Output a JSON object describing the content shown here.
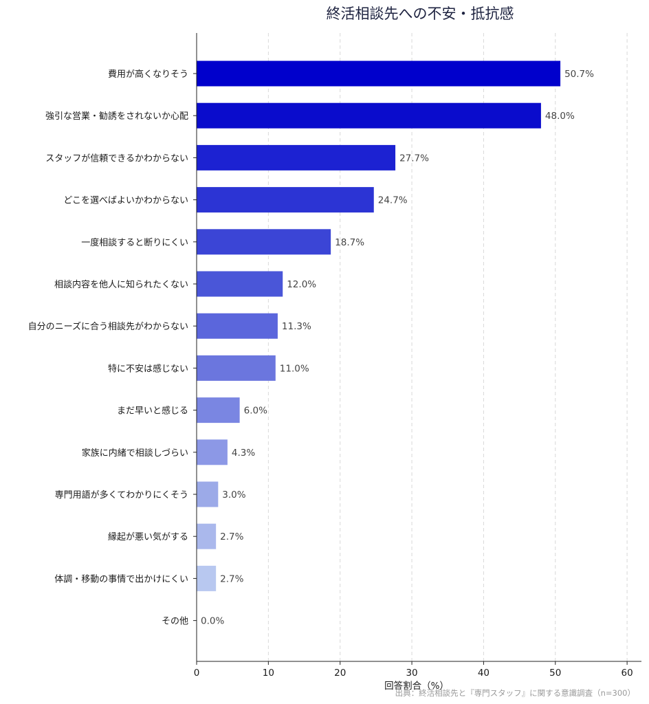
{
  "chart_data": {
    "type": "bar",
    "orientation": "horizontal",
    "title": "終活相談先への不安・抵抗感",
    "xlabel": "回答割合（%）",
    "source": "出典：終活相談先と『専門スタッフ』に関する意識調査（n=300）",
    "xlim": [
      0,
      62
    ],
    "xticks": [
      0,
      10,
      20,
      30,
      40,
      50,
      60
    ],
    "grid": "vertical-dashed",
    "categories": [
      "費用が高くなりそう",
      "強引な営業・勧誘をされないか心配",
      "スタッフが信頼できるかわからない",
      "どこを選べばよいかわからない",
      "一度相談すると断りにくい",
      "相談内容を他人に知られたくない",
      "自分のニーズに合う相談先がわからない",
      "特に不安は感じない",
      "まだ早いと感じる",
      "家族に内緒で相談しづらい",
      "専門用語が多くてわかりにくそう",
      "縁起が悪い気がする",
      "体調・移動の事情で出かけにくい",
      "その他"
    ],
    "values": [
      50.7,
      48.0,
      27.7,
      24.7,
      18.7,
      12.0,
      11.3,
      11.0,
      6.0,
      4.3,
      3.0,
      2.7,
      2.7,
      0.0
    ],
    "value_labels": [
      "50.7%",
      "48.0%",
      "27.7%",
      "24.7%",
      "18.7%",
      "12.0%",
      "11.3%",
      "11.0%",
      "6.0%",
      "4.3%",
      "3.0%",
      "2.7%",
      "2.7%",
      "0.0%"
    ],
    "colors": [
      "#0000cc",
      "#0a0ccc",
      "#1c22d2",
      "#2c34d4",
      "#3b45d6",
      "#4a56d8",
      "#5b66dc",
      "#6b76de",
      "#7a86e2",
      "#8c98e6",
      "#9caae8",
      "#aab8ec",
      "#b8c8f0",
      "#c6d4f4"
    ]
  }
}
